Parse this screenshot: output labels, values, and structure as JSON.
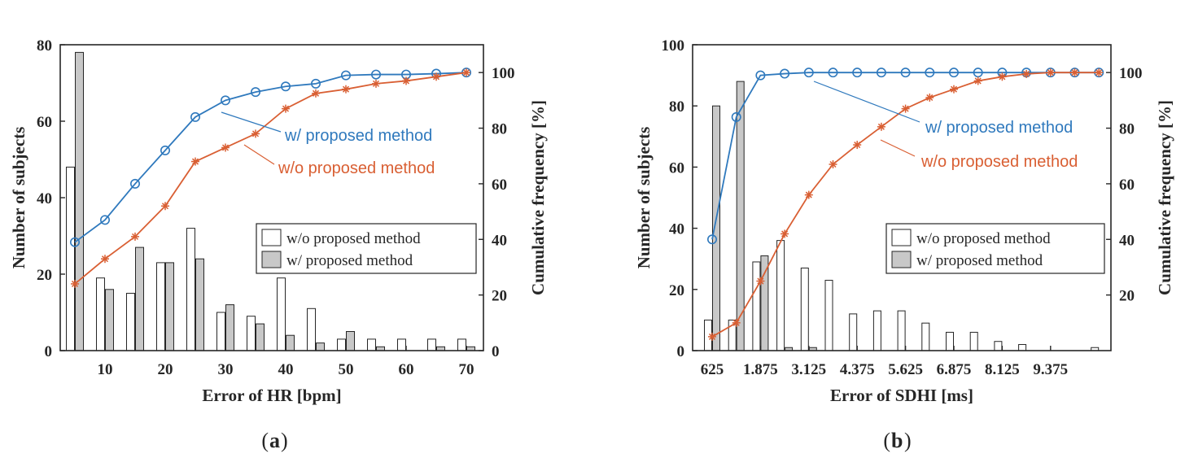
{
  "chart_data": [
    {
      "type": "bar+line",
      "panel_caption_open": "(",
      "panel_caption_letter": "a",
      "panel_caption_close": ")",
      "xlabel": "Error of HR [bpm]",
      "ylabel_left": "Number of subjects",
      "ylabel_right": "Cumulative frequency [%]",
      "ylim_left": [
        0,
        80
      ],
      "ylim_right": [
        0,
        110
      ],
      "x_ticks": [
        "10",
        "20",
        "30",
        "40",
        "50",
        "60",
        "70"
      ],
      "y_ticks_left": [
        "0",
        "20",
        "40",
        "60",
        "80"
      ],
      "y_ticks_right": [
        "0",
        "20",
        "40",
        "60",
        "80",
        "100"
      ],
      "categories": [
        5,
        10,
        15,
        20,
        25,
        30,
        35,
        40,
        45,
        50,
        55,
        60,
        65,
        70
      ],
      "series": [
        {
          "name": "w/o proposed method",
          "kind": "bar",
          "color": "#ffffff",
          "values": [
            48,
            19,
            15,
            23,
            32,
            10,
            9,
            19,
            11,
            3,
            3,
            3,
            3,
            3
          ]
        },
        {
          "name": "w/ proposed method",
          "kind": "bar",
          "color": "#c8c8c8",
          "values": [
            78,
            16,
            27,
            23,
            24,
            12,
            7,
            4,
            2,
            5,
            1,
            0,
            1,
            1
          ]
        },
        {
          "name": "w/ proposed method",
          "kind": "line",
          "marker": "circle",
          "color": "#2f79bd",
          "values": [
            39,
            47,
            60,
            72,
            84,
            90,
            93,
            95,
            96,
            99,
            99.3,
            99.3,
            99.6,
            100
          ]
        },
        {
          "name": "w/o proposed method",
          "kind": "line",
          "marker": "asterisk",
          "color": "#d95f33",
          "values": [
            24,
            33,
            41,
            52,
            68,
            73,
            78,
            87,
            92.5,
            94,
            96,
            97,
            98.5,
            100
          ]
        }
      ],
      "legend": [
        "w/o proposed method",
        "w/ proposed method"
      ],
      "annotations": [
        "w/ proposed method",
        "w/o proposed method"
      ]
    },
    {
      "type": "bar+line",
      "panel_caption_open": "(",
      "panel_caption_letter": "b",
      "panel_caption_close": ")",
      "xlabel": "Error  of SDHI [ms]",
      "ylabel_left": "Number of subjects",
      "ylabel_right": "Cumulative frequency [%]",
      "ylim_left": [
        0,
        100
      ],
      "ylim_right": [
        0,
        110
      ],
      "x_ticks": [
        "625",
        "1.875",
        "3.125",
        "4.375",
        "5.625",
        "6.875",
        "8.125",
        "9.375"
      ],
      "y_ticks_left": [
        "0",
        "20",
        "40",
        "60",
        "80",
        "100"
      ],
      "y_ticks_right": [
        "20",
        "40",
        "60",
        "80",
        "100"
      ],
      "categories": [
        1,
        2,
        3,
        4,
        5,
        6,
        7,
        8,
        9,
        10,
        11,
        12,
        13,
        14,
        15,
        16,
        17
      ],
      "series": [
        {
          "name": "w/o proposed method",
          "kind": "bar",
          "color": "#ffffff",
          "values": [
            10,
            10,
            29,
            36,
            27,
            23,
            12,
            13,
            13,
            9,
            6,
            6,
            3,
            2,
            0,
            0,
            1
          ]
        },
        {
          "name": "w/ proposed method",
          "kind": "bar",
          "color": "#c8c8c8",
          "values": [
            80,
            88,
            31,
            1,
            1,
            0,
            0,
            0,
            0,
            0,
            0,
            0,
            0,
            0,
            0,
            0,
            0
          ]
        },
        {
          "name": "w/ proposed method",
          "kind": "line",
          "marker": "circle",
          "color": "#2f79bd",
          "values": [
            40,
            84,
            99,
            99.6,
            100,
            100,
            100,
            100,
            100,
            100,
            100,
            100,
            100,
            100,
            100,
            100,
            100
          ]
        },
        {
          "name": "w/o proposed method",
          "kind": "line",
          "marker": "asterisk",
          "color": "#d95f33",
          "values": [
            5,
            10,
            25,
            42,
            56,
            67,
            74,
            80.5,
            87,
            91,
            94,
            97,
            98.5,
            99.5,
            100,
            100,
            100
          ]
        }
      ],
      "legend": [
        "w/o proposed method",
        "w/ proposed method"
      ],
      "annotations": [
        "w/ proposed method",
        "w/o proposed method"
      ]
    }
  ]
}
